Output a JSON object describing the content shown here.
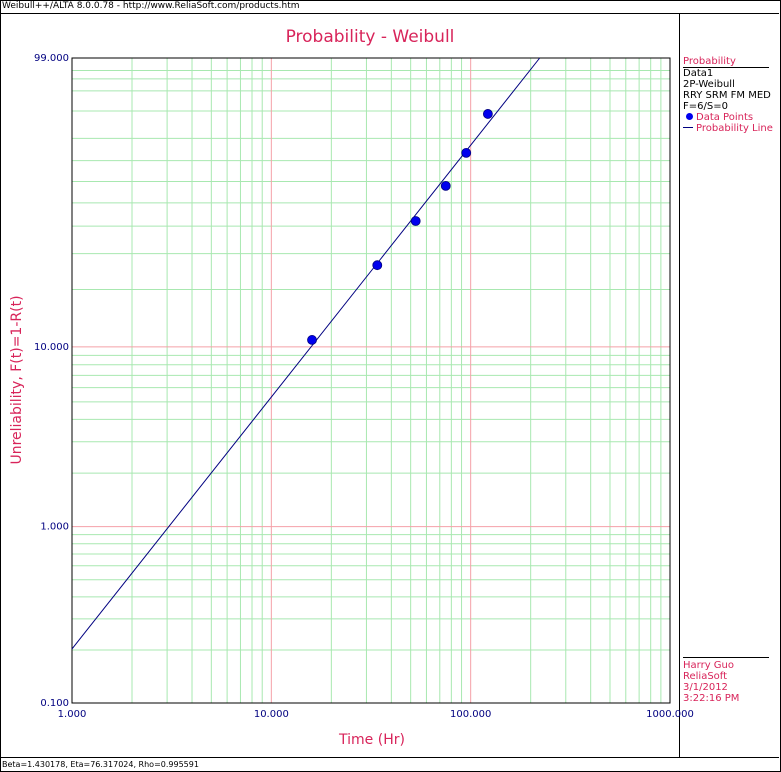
{
  "window": {
    "header": "Weibull++/ALTA 8.0.0.78 - http://www.ReliaSoft.com/products.htm"
  },
  "footer": {
    "params": "Beta=1.430178, Eta=76.317024, Rho=0.995591"
  },
  "legend": {
    "title": "Probability",
    "lines": [
      "Data1",
      "2P-Weibull",
      "RRY SRM FM MED",
      "F=6/S=0"
    ],
    "data_points": "Data Points",
    "probability_line": "Probability Line"
  },
  "info": {
    "user": "Harry Guo",
    "company": "ReliaSoft",
    "date": "3/1/2012",
    "time": "3:22:16 PM"
  },
  "colors": {
    "title": "#d8245a",
    "axis_text": "#000080",
    "major_grid": "#f4a0a8",
    "minor_grid": "#a8e8b0",
    "line": "#000080",
    "points": "#0000ee"
  },
  "chart_data": {
    "type": "scatter",
    "title": "Probability - Weibull",
    "xlabel": "Time (Hr)",
    "ylabel": "Unreliability, F(t)=1-R(t)",
    "x_scale": "log",
    "y_scale": "weibull",
    "xlim": [
      1,
      1000
    ],
    "ylim": [
      0.1,
      99
    ],
    "x_ticks": [
      "1.000",
      "10.000",
      "100.000",
      "1000.000"
    ],
    "y_ticks": [
      "0.100",
      "1.000",
      "10.000",
      "99.000"
    ],
    "grid": true,
    "legend_position": "right",
    "series": [
      {
        "name": "Data Points",
        "type": "scatter",
        "x": [
          16.0,
          34.0,
          53.0,
          75.0,
          95.0,
          122.0
        ],
        "y": [
          10.9,
          26.4,
          42.1,
          57.9,
          73.6,
          89.1
        ]
      },
      {
        "name": "Probability Line",
        "type": "line",
        "beta": 1.430178,
        "eta": 76.317024
      }
    ]
  }
}
